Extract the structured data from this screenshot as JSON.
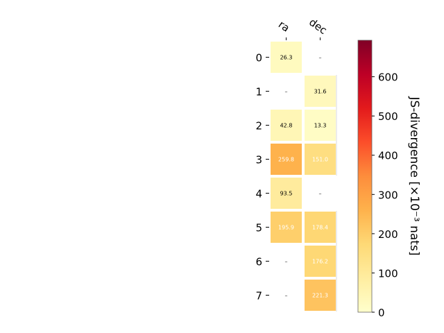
{
  "chart_data": {
    "type": "heatmap",
    "columns": [
      "ra",
      "dec"
    ],
    "rows": [
      "0",
      "1",
      "2",
      "3",
      "4",
      "5",
      "6",
      "7"
    ],
    "values": [
      [
        26.3,
        null
      ],
      [
        null,
        31.6
      ],
      [
        42.8,
        13.3
      ],
      [
        259.8,
        151.0
      ],
      [
        93.5,
        null
      ],
      [
        195.9,
        178.4
      ],
      [
        null,
        176.2
      ],
      [
        null,
        221.3
      ]
    ],
    "cell_labels": [
      [
        "26.3",
        "–"
      ],
      [
        "–",
        "31.6"
      ],
      [
        "42.8",
        "13.3"
      ],
      [
        "259.8",
        "151.0"
      ],
      [
        "93.5",
        "–"
      ],
      [
        "195.9",
        "178.4"
      ],
      [
        "–",
        "176.2"
      ],
      [
        "–",
        "221.3"
      ]
    ],
    "missing_label": "–",
    "colormap": "YlOrRd",
    "colorbar": {
      "label": "JS-divergence [×10⁻³ nats]",
      "min": 0,
      "max": 693,
      "ticks": [
        0,
        100,
        200,
        300,
        400,
        500,
        600
      ],
      "tick_labels": [
        "0",
        "100",
        "200",
        "300",
        "400",
        "500",
        "600"
      ]
    },
    "light_text_threshold": 150
  }
}
